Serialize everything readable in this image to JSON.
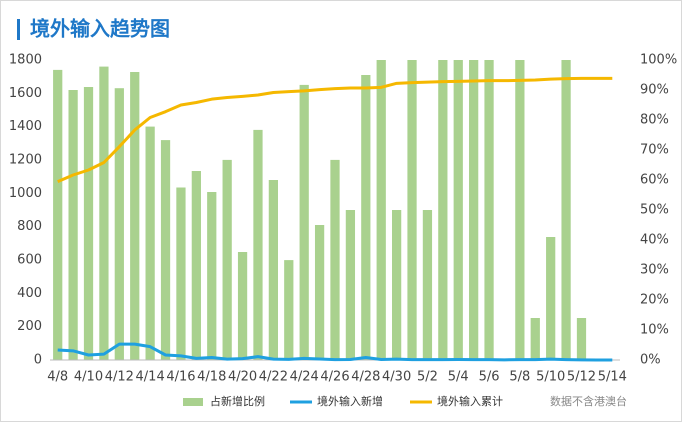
{
  "chart_data": {
    "type": "bar_line",
    "title": "境外输入趋势图",
    "note": "数据不含港澳台",
    "categories": [
      "4/8",
      null,
      "4/10",
      null,
      "4/12",
      null,
      "4/14",
      null,
      "4/16",
      null,
      "4/18",
      null,
      "4/20",
      null,
      "4/22",
      null,
      "4/24",
      null,
      "4/26",
      null,
      "4/28",
      null,
      "4/30",
      null,
      "5/2",
      null,
      "5/4",
      null,
      "5/6",
      null,
      "5/8",
      null,
      "5/10",
      null,
      "5/12",
      null,
      "5/14"
    ],
    "series": [
      {
        "name": "占新增比例",
        "kind": "bar",
        "axis": "y2",
        "color": "#a9d18e",
        "values": [
          96.7,
          90,
          91,
          97.8,
          90.6,
          96,
          77.8,
          73.3,
          57.5,
          63,
          56,
          66.7,
          36,
          76.7,
          60,
          33.3,
          91.7,
          45,
          66.7,
          50,
          95,
          100,
          50,
          100,
          50,
          100,
          100,
          100,
          100,
          0,
          100,
          14,
          41,
          100,
          14,
          0,
          0
        ]
      },
      {
        "name": "境外输入新增",
        "kind": "line",
        "color": "#1fa0e0",
        "values": [
          60,
          55,
          30,
          35,
          95,
          95,
          80,
          30,
          25,
          10,
          15,
          5,
          8,
          20,
          5,
          4,
          10,
          6,
          2,
          3,
          15,
          3,
          5,
          2,
          2,
          2,
          3,
          2,
          2,
          1,
          2,
          2,
          5,
          2,
          1,
          0,
          0
        ]
      },
      {
        "name": "境外输入累计",
        "kind": "line",
        "color": "#f5b800",
        "values": [
          1070,
          1110,
          1140,
          1185,
          1280,
          1380,
          1455,
          1490,
          1530,
          1545,
          1565,
          1575,
          1582,
          1590,
          1605,
          1610,
          1615,
          1622,
          1628,
          1632,
          1632,
          1636,
          1660,
          1664,
          1667,
          1670,
          1672,
          1674,
          1676,
          1676,
          1678,
          1680,
          1685,
          1688,
          1690,
          1690,
          1690
        ]
      }
    ],
    "ylim": [
      0,
      1800
    ],
    "yticks": [
      0,
      200,
      400,
      600,
      800,
      1000,
      1200,
      1400,
      1600,
      1800
    ],
    "y2lim": [
      0,
      100
    ],
    "y2ticks": [
      {
        "value": 0,
        "label": "0%"
      },
      {
        "value": 10,
        "label": "10%"
      },
      {
        "value": 20,
        "label": "20%"
      },
      {
        "value": 30,
        "label": "30%"
      },
      {
        "value": 40,
        "label": "40%"
      },
      {
        "value": 50,
        "label": "50%"
      },
      {
        "value": 60,
        "label": "60%"
      },
      {
        "value": 70,
        "label": "70%"
      },
      {
        "value": 80,
        "label": "80%"
      },
      {
        "value": 90,
        "label": "90%"
      },
      {
        "value": 100,
        "label": "100%"
      }
    ],
    "grid": false
  }
}
